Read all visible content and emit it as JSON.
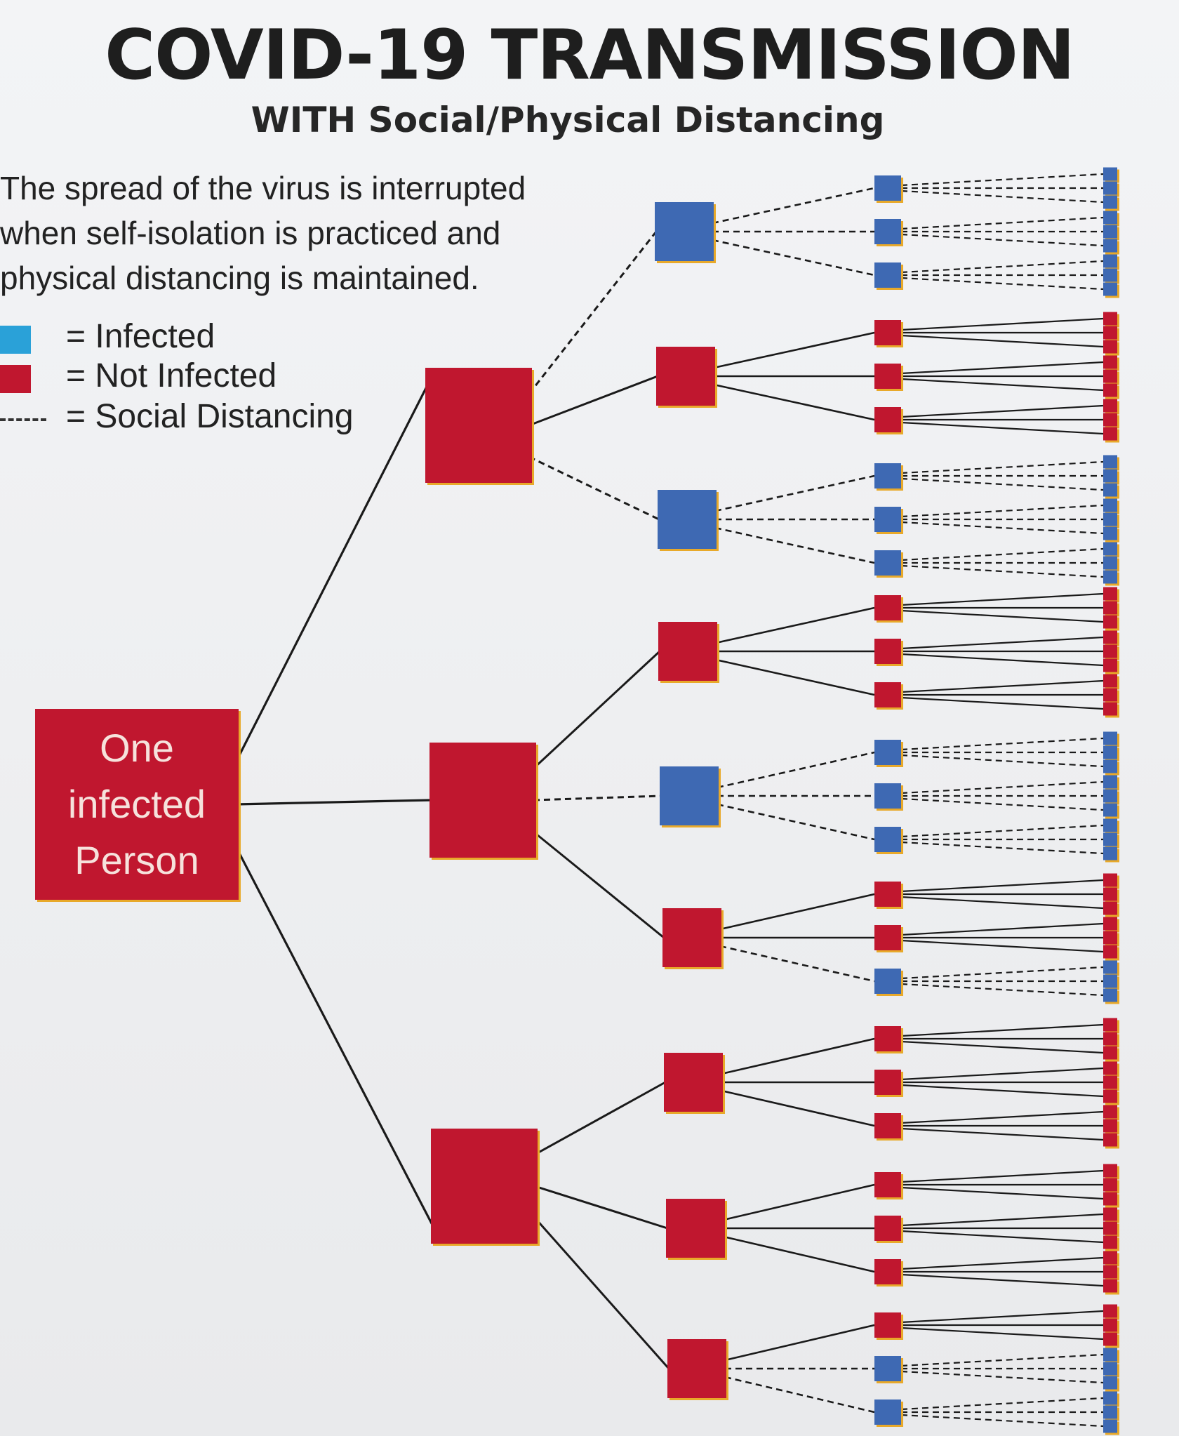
{
  "title": "COVID-19 TRANSMISSION",
  "subtitle": "WITH Social/Physical Distancing",
  "description": [
    "The spread of the virus is interrupted",
    "when self-isolation is practiced and",
    "physical distancing is maintained."
  ],
  "legend": {
    "infected": {
      "label": "= Infected",
      "color": "#2aa1d8"
    },
    "not_infected": {
      "label": "= Not Infected",
      "color": "#c0172f"
    },
    "social_distancing": {
      "label": "= Social Distancing"
    }
  },
  "colors": {
    "red_node": "#c0172f",
    "blue_node": "#3e69b3",
    "node_edge": "#e8a92a",
    "line": "#1a1a1a"
  },
  "root": {
    "label_lines": [
      "One",
      "infected",
      "Person"
    ]
  },
  "tree": {
    "level1": [
      {
        "status": "red",
        "children": [
          {
            "status": "blue",
            "link": "dashed",
            "children": [
              "blue",
              "blue",
              "blue"
            ]
          },
          {
            "status": "red",
            "link": "solid",
            "children": [
              "red",
              "red",
              "red"
            ]
          },
          {
            "status": "blue",
            "link": "dashed",
            "children": [
              "blue",
              "blue",
              "blue"
            ]
          }
        ]
      },
      {
        "status": "red",
        "children": [
          {
            "status": "red",
            "link": "solid",
            "children": [
              "red",
              "red",
              "red"
            ]
          },
          {
            "status": "blue",
            "link": "dashed",
            "children": [
              "blue",
              "blue",
              "blue"
            ]
          },
          {
            "status": "red",
            "link": "solid",
            "children": [
              "red",
              "red",
              "blue"
            ]
          }
        ]
      },
      {
        "status": "red",
        "children": [
          {
            "status": "red",
            "link": "solid",
            "children": [
              "red",
              "red",
              "red"
            ]
          },
          {
            "status": "red",
            "link": "solid",
            "children": [
              "red",
              "red",
              "red"
            ]
          },
          {
            "status": "red",
            "link": "solid",
            "children": [
              "red",
              "blue",
              "blue"
            ]
          }
        ]
      }
    ]
  }
}
